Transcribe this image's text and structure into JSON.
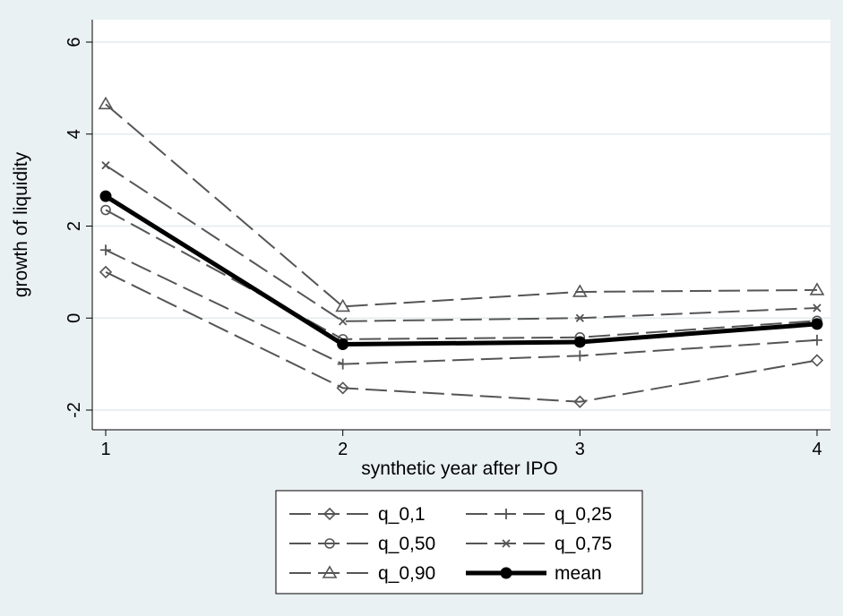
{
  "chart_data": {
    "type": "line",
    "xlabel": "synthetic year after IPO",
    "ylabel": "growth of liquidity",
    "x": [
      1,
      2,
      3,
      4
    ],
    "xlim": [
      1,
      4
    ],
    "ylim": [
      -2,
      6
    ],
    "xticks": [
      "1",
      "2",
      "3",
      "4"
    ],
    "yticks": [
      "-2",
      "0",
      "2",
      "4",
      "6"
    ],
    "grid": "horizontal",
    "legend_position": "bottom",
    "series": [
      {
        "name": "q_0,1",
        "marker": "diamond",
        "values": [
          1.0,
          -1.52,
          -1.82,
          -0.92
        ]
      },
      {
        "name": "q_0,25",
        "marker": "plus",
        "values": [
          1.48,
          -1.0,
          -0.82,
          -0.48
        ]
      },
      {
        "name": "q_0,50",
        "marker": "circle",
        "values": [
          2.35,
          -0.46,
          -0.42,
          -0.06
        ]
      },
      {
        "name": "q_0,75",
        "marker": "x",
        "values": [
          3.32,
          -0.07,
          0.0,
          0.22
        ]
      },
      {
        "name": "q_0,90",
        "marker": "triangle",
        "values": [
          4.65,
          0.25,
          0.57,
          0.61
        ]
      },
      {
        "name": "mean",
        "marker": "dot",
        "values": [
          2.65,
          -0.57,
          -0.52,
          -0.13
        ]
      }
    ],
    "colors": {
      "background": "#eaf1f3",
      "plot_area": "#ffffff",
      "grid": "#e3ecee",
      "quantile_line": "#555555",
      "mean_line": "#000000"
    }
  }
}
